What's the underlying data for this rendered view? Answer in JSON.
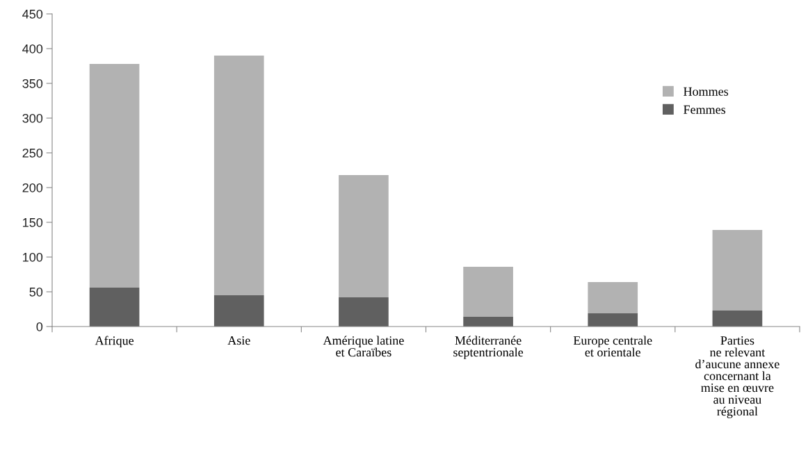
{
  "chart_data": {
    "type": "bar",
    "stacked": true,
    "categories": [
      "Afrique",
      "Asie",
      "Amérique latine\net Caraïbes",
      "Méditerranée\nseptentrionale",
      "Europe centrale\net orientale",
      "Parties\nne relevant\nd’aucune annexe\nconcernant la\nmise en œuvre\nau niveau\nrégional"
    ],
    "series": [
      {
        "name": "Femmes",
        "color": "#606060",
        "values": [
          56,
          45,
          42,
          14,
          19,
          23
        ]
      },
      {
        "name": "Hommes",
        "color": "#b2b2b2",
        "values": [
          322,
          345,
          176,
          72,
          45,
          116
        ]
      }
    ],
    "ylim": [
      0,
      450
    ],
    "yticks": [
      0,
      50,
      100,
      150,
      200,
      250,
      300,
      350,
      400,
      450
    ],
    "grid": false,
    "legend": "right"
  }
}
